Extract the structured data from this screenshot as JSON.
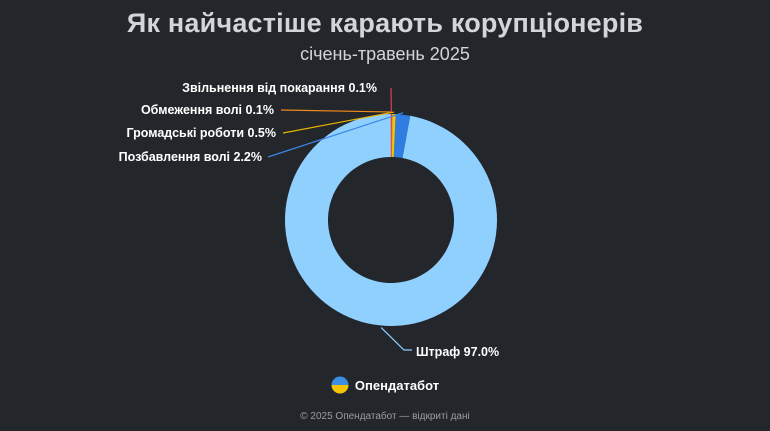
{
  "header": {
    "title": "Як найчастіше карають корупціонерів",
    "subtitle": "січень-травень 2025"
  },
  "chart_data": {
    "type": "pie",
    "variant": "donut",
    "title": "Як найчастіше карають корупціонерів",
    "subtitle": "січень-травень 2025",
    "slices": [
      {
        "name": "Штраф",
        "value": 97.0,
        "label": "Штраф 97.0%",
        "color": "#8fd0ff",
        "lead_color": "#8fd0ff"
      },
      {
        "name": "Позбавлення волі",
        "value": 2.2,
        "label": "Позбавлення волі 2.2%",
        "color": "#2f7de1",
        "lead_color": "#3d86e8"
      },
      {
        "name": "Громадські роботи",
        "value": 0.5,
        "label": "Громадські роботи 0.5%",
        "color": "#f5c400",
        "lead_color": "#e9b400"
      },
      {
        "name": "Обмеження волі",
        "value": 0.1,
        "label": "Обмеження волі 0.1%",
        "color": "#f08a1c",
        "lead_color": "#f08a1c"
      },
      {
        "name": "Звільнення від покарання",
        "value": 0.1,
        "label": "Звільнення від покарання 0.1%",
        "color": "#e0404a",
        "lead_color": "#e0404a"
      }
    ]
  },
  "brand": {
    "name": "Опендатабот",
    "logo_colors": [
      "#3b8fe0",
      "#f5c400"
    ]
  },
  "footer": {
    "text": "© 2025 Опендатабот — відкриті дані"
  }
}
